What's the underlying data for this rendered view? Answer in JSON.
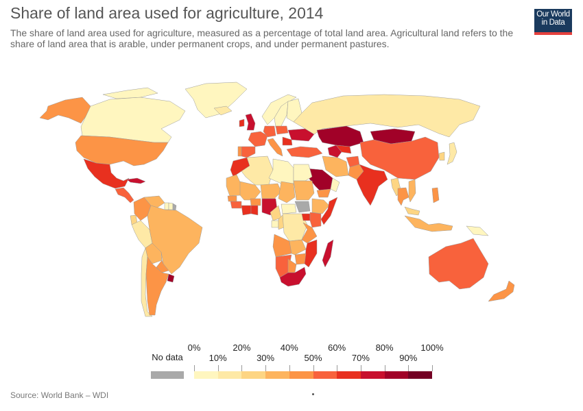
{
  "header": {
    "title": "Share of land area used for agriculture, 2014",
    "subtitle": "The share of land area used for agriculture, measured as a percentage of total land area. Agricultural land refers to the share of land area that is arable, under permanent crops, and under permanent pastures."
  },
  "logo": {
    "line1": "Our World",
    "line2": "in Data"
  },
  "legend": {
    "no_data_label": "No data",
    "no_data_color": "#a9a9a9",
    "labels_top": [
      "0%",
      "20%",
      "40%",
      "60%",
      "80%",
      "100%"
    ],
    "labels_bottom": [
      "10%",
      "30%",
      "50%",
      "70%",
      "90%"
    ],
    "colors": [
      "#fff6bf",
      "#fee9a6",
      "#fdd583",
      "#fdb45e",
      "#fc9446",
      "#f8623c",
      "#e8301f",
      "#c8102e",
      "#a10128",
      "#740024"
    ]
  },
  "footer": {
    "source": "Source: World Bank – WDI"
  },
  "map_data": {
    "variable": "Share of land area used for agriculture",
    "year": 2014,
    "unit": "%",
    "countries": [
      {
        "name": "Canada",
        "bin": 0
      },
      {
        "name": "Greenland",
        "bin": 0
      },
      {
        "name": "Alaska (USA)",
        "bin": 4
      },
      {
        "name": "United States",
        "bin": 4
      },
      {
        "name": "Mexico",
        "bin": 6
      },
      {
        "name": "Cuba",
        "bin": 7
      },
      {
        "name": "Central America",
        "bin": 5
      },
      {
        "name": "Colombia",
        "bin": 4
      },
      {
        "name": "Venezuela",
        "bin": 3
      },
      {
        "name": "Guyana",
        "bin": 0
      },
      {
        "name": "Suriname",
        "bin": 0
      },
      {
        "name": "French Guiana",
        "bin": "no data"
      },
      {
        "name": "Ecuador",
        "bin": 2
      },
      {
        "name": "Peru",
        "bin": 1
      },
      {
        "name": "Brazil",
        "bin": 3
      },
      {
        "name": "Bolivia",
        "bin": 3
      },
      {
        "name": "Paraguay",
        "bin": 4
      },
      {
        "name": "Chile",
        "bin": 1
      },
      {
        "name": "Argentina",
        "bin": 4
      },
      {
        "name": "Uruguay",
        "bin": 8
      },
      {
        "name": "Iceland",
        "bin": 1
      },
      {
        "name": "Norway",
        "bin": 0
      },
      {
        "name": "Sweden",
        "bin": 0
      },
      {
        "name": "Finland",
        "bin": 0
      },
      {
        "name": "United Kingdom",
        "bin": 7
      },
      {
        "name": "Ireland",
        "bin": 6
      },
      {
        "name": "France",
        "bin": 5
      },
      {
        "name": "Spain",
        "bin": 5
      },
      {
        "name": "Portugal",
        "bin": 4
      },
      {
        "name": "Germany",
        "bin": 5
      },
      {
        "name": "Poland",
        "bin": 5
      },
      {
        "name": "Italy",
        "bin": 4
      },
      {
        "name": "Ukraine",
        "bin": 7
      },
      {
        "name": "Romania",
        "bin": 6
      },
      {
        "name": "Turkey",
        "bin": 5
      },
      {
        "name": "Russia",
        "bin": 1
      },
      {
        "name": "Kazakhstan",
        "bin": 8
      },
      {
        "name": "Uzbekistan",
        "bin": 6
      },
      {
        "name": "Turkmenistan",
        "bin": 7
      },
      {
        "name": "Mongolia",
        "bin": 8
      },
      {
        "name": "China",
        "bin": 5
      },
      {
        "name": "Japan",
        "bin": 1
      },
      {
        "name": "South Korea",
        "bin": 2
      },
      {
        "name": "Iran",
        "bin": 3
      },
      {
        "name": "Afghanistan",
        "bin": 5
      },
      {
        "name": "Pakistan",
        "bin": 4
      },
      {
        "name": "India",
        "bin": 6
      },
      {
        "name": "Saudi Arabia",
        "bin": 8
      },
      {
        "name": "Oman",
        "bin": 0
      },
      {
        "name": "Yemen",
        "bin": 4
      },
      {
        "name": "Myanmar",
        "bin": 2
      },
      {
        "name": "Thailand",
        "bin": 4
      },
      {
        "name": "Vietnam",
        "bin": 3
      },
      {
        "name": "Philippines",
        "bin": 4
      },
      {
        "name": "Malaysia",
        "bin": 2
      },
      {
        "name": "Indonesia",
        "bin": 3
      },
      {
        "name": "Papua New Guinea",
        "bin": 0
      },
      {
        "name": "Australia",
        "bin": 5
      },
      {
        "name": "New Zealand",
        "bin": 4
      },
      {
        "name": "Morocco",
        "bin": 6
      },
      {
        "name": "Algeria",
        "bin": 1
      },
      {
        "name": "Libya",
        "bin": 0
      },
      {
        "name": "Egypt",
        "bin": 0
      },
      {
        "name": "Mauritania",
        "bin": 3
      },
      {
        "name": "Mali",
        "bin": 3
      },
      {
        "name": "Niger",
        "bin": 3
      },
      {
        "name": "Chad",
        "bin": 3
      },
      {
        "name": "Sudan",
        "bin": 3
      },
      {
        "name": "South Sudan",
        "bin": "no data"
      },
      {
        "name": "Ethiopia",
        "bin": 3
      },
      {
        "name": "Somalia",
        "bin": 6
      },
      {
        "name": "Senegal",
        "bin": 4
      },
      {
        "name": "Guinea",
        "bin": 5
      },
      {
        "name": "Burkina Faso",
        "bin": 4
      },
      {
        "name": "Cote d'Ivoire",
        "bin": 6
      },
      {
        "name": "Ghana",
        "bin": 6
      },
      {
        "name": "Nigeria",
        "bin": 7
      },
      {
        "name": "Cameroon",
        "bin": 2
      },
      {
        "name": "Central African Republic",
        "bin": 0
      },
      {
        "name": "Gabon",
        "bin": 0
      },
      {
        "name": "Congo",
        "bin": 2
      },
      {
        "name": "Democratic Republic of Congo",
        "bin": 1
      },
      {
        "name": "Uganda",
        "bin": 6
      },
      {
        "name": "Kenya",
        "bin": 5
      },
      {
        "name": "Tanzania",
        "bin": 4
      },
      {
        "name": "Angola",
        "bin": 4
      },
      {
        "name": "Zambia",
        "bin": 3
      },
      {
        "name": "Mozambique",
        "bin": 6
      },
      {
        "name": "Namibia",
        "bin": 5
      },
      {
        "name": "Botswana",
        "bin": 4
      },
      {
        "name": "Zimbabwe",
        "bin": 4
      },
      {
        "name": "South Africa",
        "bin": 7
      },
      {
        "name": "Madagascar",
        "bin": 7
      }
    ]
  }
}
